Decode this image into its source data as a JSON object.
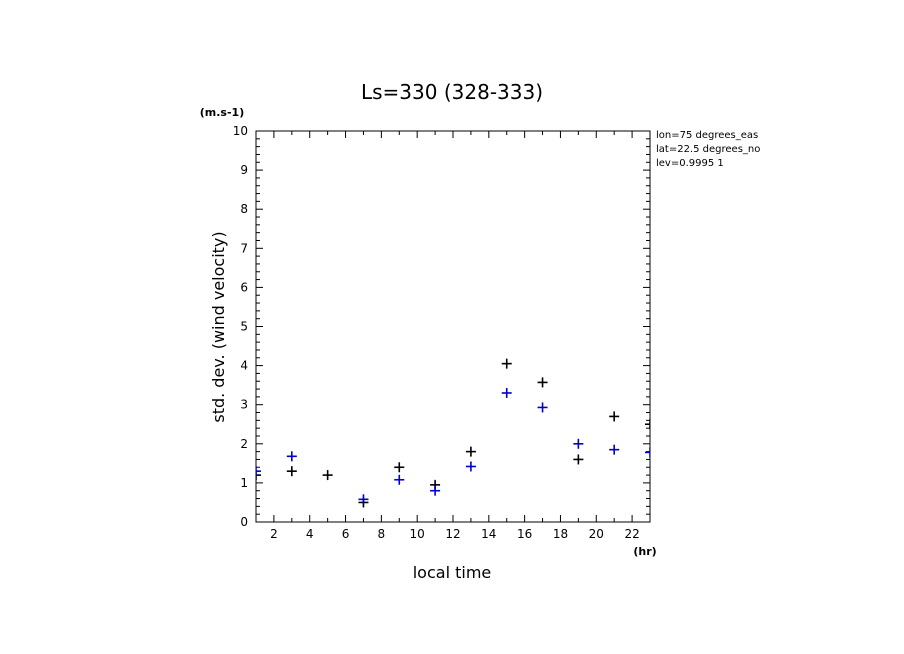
{
  "chart_data": {
    "type": "scatter",
    "title": "Ls=330 (328-333)",
    "xlabel": "local time",
    "ylabel": "std. dev. (wind velocity)",
    "x_unit": "(hr)",
    "y_unit": "(m.s-1)",
    "xlim": [
      1,
      23
    ],
    "ylim": [
      0,
      10
    ],
    "x_ticks": [
      2,
      4,
      6,
      8,
      10,
      12,
      14,
      16,
      18,
      20,
      22
    ],
    "y_ticks": [
      0,
      1,
      2,
      3,
      4,
      5,
      6,
      7,
      8,
      9,
      10
    ],
    "grid": false,
    "info_lines": [
      "lon=75 degrees_eas",
      "lat=22.5 degrees_no",
      "lev=0.9995 1"
    ],
    "series": [
      {
        "color": "#000000",
        "marker": "plus",
        "x": [
          1,
          3,
          5,
          7,
          9,
          11,
          13,
          15,
          17,
          19,
          21,
          23
        ],
        "y": [
          1.2,
          1.3,
          1.2,
          0.5,
          1.4,
          0.95,
          1.8,
          4.05,
          3.57,
          1.6,
          2.7,
          2.5
        ]
      },
      {
        "color": "#0000cc",
        "marker": "plus",
        "x": [
          1,
          3,
          7,
          9,
          11,
          13,
          15,
          17,
          19,
          21,
          23
        ],
        "y": [
          1.3,
          1.68,
          0.58,
          1.08,
          0.8,
          1.42,
          3.3,
          2.93,
          2.0,
          1.85,
          1.78
        ]
      }
    ]
  }
}
